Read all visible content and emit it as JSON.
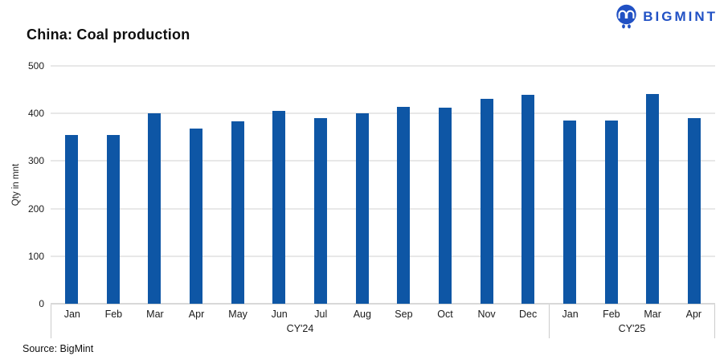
{
  "header": {
    "title": "China: Coal production",
    "logo_text": "BIGMINT"
  },
  "footer": {
    "source": "Source: BigMint"
  },
  "icons": {
    "logo_icon": "bigmint-twin-figures-circle"
  },
  "colors": {
    "bar": "#0e56a5",
    "logo_blue": "#2151c4",
    "gridline": "#e8e8e8",
    "axis_line": "#d8d8d8",
    "separator": "#cccccc",
    "text": "#1a1a1a"
  },
  "chart_data": {
    "type": "bar",
    "title": "China: Coal production",
    "xlabel": "",
    "ylabel": "Qty in mnt",
    "ylim": [
      0,
      500
    ],
    "yticks": [
      0,
      100,
      200,
      300,
      400,
      500
    ],
    "grid": true,
    "legend": false,
    "bar_color": "#0e56a5",
    "groups": [
      {
        "label": "CY'24",
        "categories": [
          "Jan",
          "Feb",
          "Mar",
          "Apr",
          "May",
          "Jun",
          "Jul",
          "Aug",
          "Sep",
          "Oct",
          "Nov",
          "Dec"
        ],
        "values": [
          355,
          355,
          400,
          369,
          383,
          405,
          390,
          400,
          414,
          412,
          430,
          440
        ]
      },
      {
        "label": "CY'25",
        "categories": [
          "Jan",
          "Feb",
          "Mar",
          "Apr"
        ],
        "values": [
          385,
          385,
          441,
          390
        ]
      }
    ]
  }
}
